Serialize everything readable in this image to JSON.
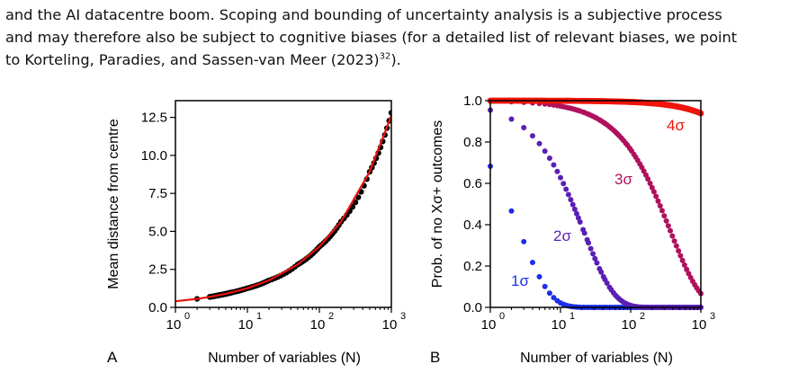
{
  "paragraph": {
    "line1": "and the AI datacentre boom. Scoping and bounding of uncertainty analysis is a subjective process",
    "line2": "and may therefore also be subject to cognitive biases (for a detailed list of relevant biases, we point",
    "line3_pre": "to Korteling, Paradies, and Sassen-van Meer (2023)",
    "line3_sup": "32",
    "line3_post": ")."
  },
  "panels": {
    "A": {
      "label": "A"
    },
    "B": {
      "label": "B"
    }
  },
  "chart_data": [
    {
      "type": "line",
      "panel": "A",
      "xlabel": "Number of variables (N)",
      "ylabel": "Mean distance from centre",
      "x_scale": "log",
      "xlim": [
        1,
        1000
      ],
      "ylim": [
        0,
        13.6
      ],
      "x_ticks": [
        {
          "value": 1,
          "base": "10",
          "exp": "0"
        },
        {
          "value": 10,
          "base": "10",
          "exp": "1"
        },
        {
          "value": 100,
          "base": "10",
          "exp": "2"
        },
        {
          "value": 1000,
          "base": "10",
          "exp": "3"
        }
      ],
      "y_ticks": [
        "0.0",
        "2.5",
        "5.0",
        "7.5",
        "10.0",
        "12.5"
      ],
      "series": [
        {
          "kind": "line",
          "color": "#e8130f",
          "x": [
            1,
            2,
            3,
            5,
            10,
            20,
            50,
            100,
            200,
            500,
            1000
          ],
          "y": [
            0.4,
            0.56,
            0.69,
            0.89,
            1.26,
            1.78,
            2.82,
            3.99,
            5.64,
            8.92,
            12.61
          ]
        },
        {
          "kind": "scatter",
          "color": "#000000",
          "x": [
            2,
            3,
            4,
            5,
            6,
            10,
            20,
            50,
            100,
            200,
            500,
            1000
          ],
          "y": [
            0.56,
            0.69,
            0.8,
            0.89,
            0.98,
            1.26,
            1.78,
            2.82,
            3.99,
            5.64,
            8.92,
            12.8
          ]
        }
      ]
    },
    {
      "type": "scatter",
      "panel": "B",
      "xlabel": "Number of variables (N)",
      "ylabel": "Prob. of no Xσ+ outcomes",
      "x_scale": "log",
      "xlim": [
        1,
        1000
      ],
      "ylim": [
        0,
        1
      ],
      "x_ticks": [
        {
          "value": 1,
          "base": "10",
          "exp": "0"
        },
        {
          "value": 10,
          "base": "10",
          "exp": "1"
        },
        {
          "value": 100,
          "base": "10",
          "exp": "2"
        },
        {
          "value": 1000,
          "base": "10",
          "exp": "3"
        }
      ],
      "y_ticks": [
        "0.0",
        "0.2",
        "0.4",
        "0.6",
        "0.8",
        "1.0"
      ],
      "series": [
        {
          "label": "1σ",
          "p": 0.6827,
          "color": "#1c2ee8"
        },
        {
          "label": "2σ",
          "p": 0.9545,
          "color": "#5a1fb4"
        },
        {
          "label": "3σ",
          "p": 0.9973,
          "color": "#b0105c"
        },
        {
          "label": "4σ",
          "p": 0.999937,
          "color": "#f0150c"
        }
      ]
    }
  ]
}
